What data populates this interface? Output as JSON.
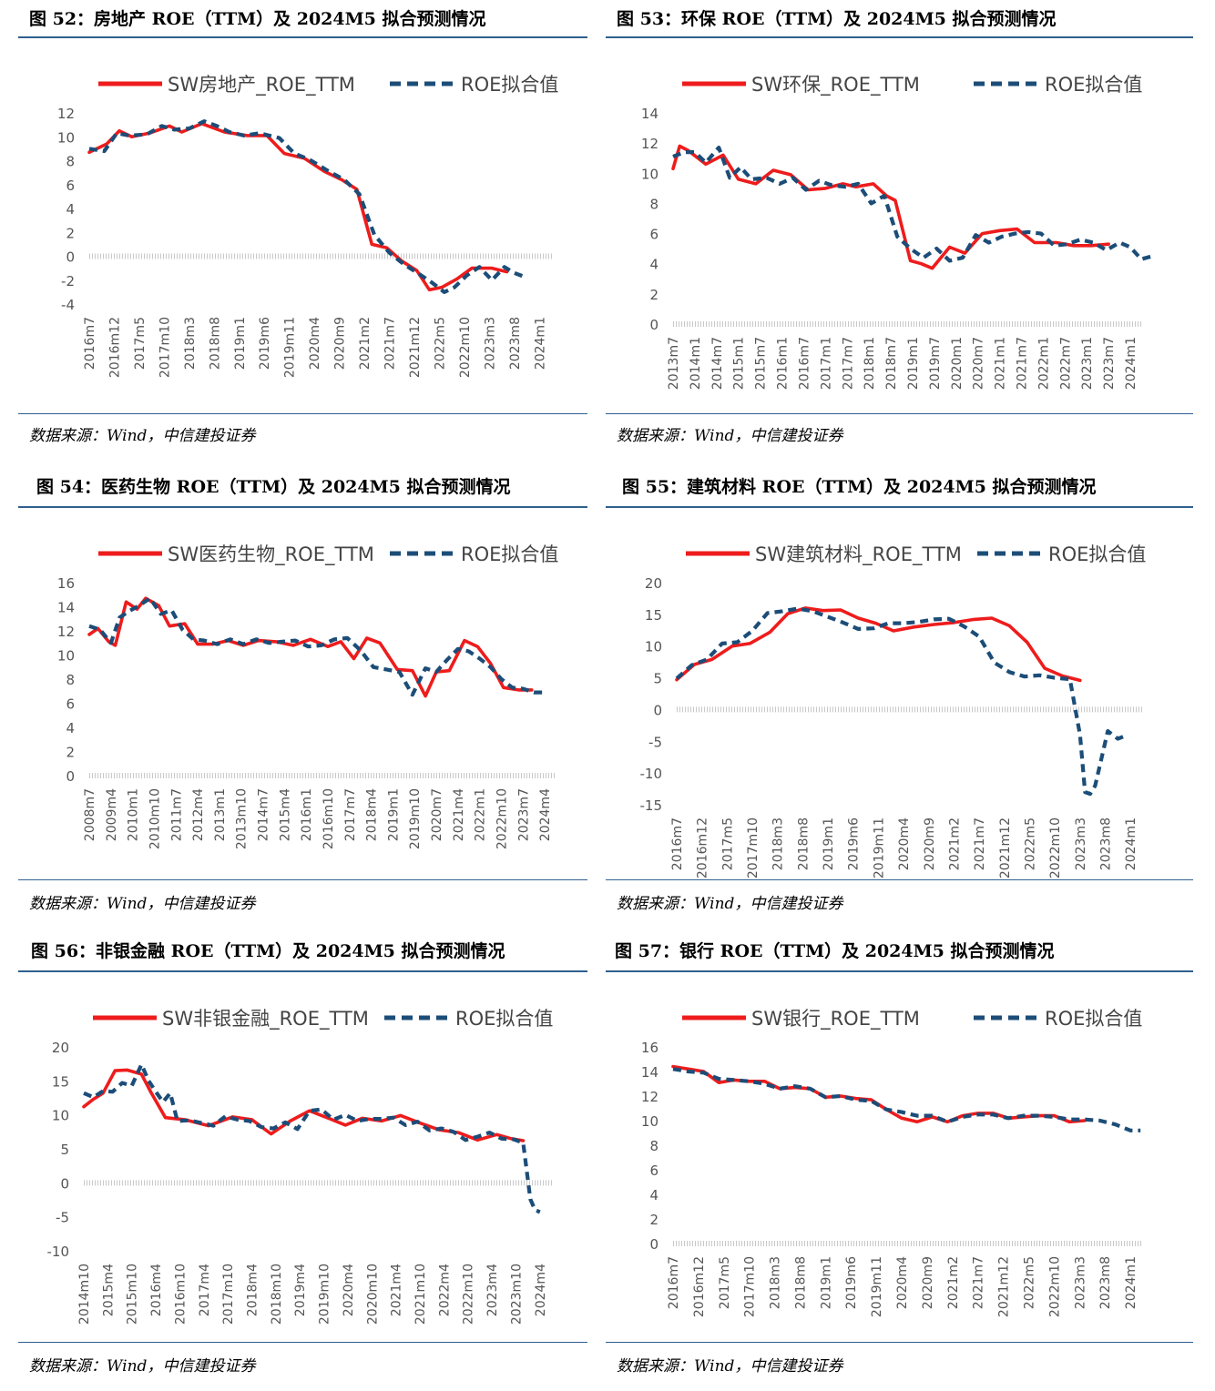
{
  "colors": {
    "actual": "#ee1c1c",
    "fitted": "#1c4d78",
    "rule": "#2f5f8f",
    "axis": "#c8c8c8",
    "tick_text": "#555555"
  },
  "source": "数据来源：Wind，中信建投证券",
  "chart_data": [
    {
      "type": "line",
      "title": "图 52：房地产 ROE（TTM）及 2024M5 拟合预测情况",
      "legend": [
        "SW房地产_ROE_TTM",
        "ROE拟合值"
      ],
      "ylim": [
        -4,
        12
      ],
      "yticks": [
        -4,
        -2,
        0,
        2,
        4,
        6,
        8,
        10,
        12
      ],
      "x_labels": [
        "2016m7",
        "2016m12",
        "2017m5",
        "2017m10",
        "2018m3",
        "2018m8",
        "2019m1",
        "2019m6",
        "2019m11",
        "2020m4",
        "2020m9",
        "2021m2",
        "2021m7",
        "2021m12",
        "2022m5",
        "2022m10",
        "2023m3",
        "2023m8",
        "2024m1"
      ],
      "series": [
        {
          "name": "SW房地产_ROE_TTM",
          "style": "solid",
          "x": [
            0,
            0.7,
            1.2,
            1.7,
            2.4,
            3.2,
            3.7,
            4.5,
            5.4,
            6.3,
            7.1,
            7.8,
            8.6,
            9.4,
            10.1,
            10.7,
            11.3,
            11.9,
            12.5,
            13.1,
            13.6,
            14.1,
            14.7,
            15.3,
            16.1,
            16.7
          ],
          "y": [
            8.7,
            9.4,
            10.5,
            10.0,
            10.3,
            10.9,
            10.4,
            11.1,
            10.4,
            10.1,
            10.1,
            8.6,
            8.2,
            7.1,
            6.4,
            5.6,
            1.0,
            0.7,
            -0.4,
            -1.2,
            -2.8,
            -2.6,
            -1.9,
            -1.0,
            -1.0,
            -1.3
          ]
        },
        {
          "name": "ROE拟合值",
          "style": "dashed",
          "x": [
            0,
            0.6,
            1.1,
            1.6,
            2.3,
            2.9,
            3.4,
            4.0,
            4.6,
            5.1,
            5.6,
            6.2,
            6.8,
            7.2,
            7.6,
            8.2,
            8.8,
            9.5,
            10.2,
            10.8,
            11.4,
            12.0,
            12.6,
            13.2,
            13.7,
            14.2,
            14.6,
            15.1,
            15.6,
            16.1,
            16.6,
            17.0,
            17.5
          ],
          "y": [
            9.0,
            8.8,
            10.3,
            10.1,
            10.2,
            10.9,
            10.6,
            10.7,
            11.3,
            10.9,
            10.4,
            10.1,
            10.3,
            10.1,
            9.9,
            8.6,
            8.1,
            7.2,
            6.4,
            5.2,
            1.8,
            0.3,
            -0.7,
            -1.5,
            -2.2,
            -3.0,
            -2.6,
            -1.6,
            -0.9,
            -2.0,
            -0.9,
            -1.4,
            -1.8
          ]
        }
      ]
    },
    {
      "type": "line",
      "title": "图 53：环保 ROE（TTM）及 2024M5 拟合预测情况",
      "legend": [
        "SW环保_ROE_TTM",
        "ROE拟合值"
      ],
      "ylim": [
        0,
        14
      ],
      "yticks": [
        0,
        2,
        4,
        6,
        8,
        10,
        12,
        14
      ],
      "x_labels": [
        "2013m7",
        "2014m1",
        "2014m7",
        "2015m1",
        "2015m7",
        "2016m1",
        "2016m7",
        "2017m1",
        "2017m7",
        "2018m1",
        "2018m7",
        "2019m1",
        "2019m7",
        "2020m1",
        "2020m7",
        "2021m1",
        "2021m7",
        "2022m1",
        "2022m7",
        "2023m1",
        "2023m7",
        "2024m1"
      ],
      "series": [
        {
          "name": "SW环保_ROE_TTM",
          "style": "solid",
          "x": [
            0,
            0.3,
            0.7,
            1.5,
            2.3,
            3.0,
            3.8,
            4.6,
            5.4,
            6.2,
            7.0,
            7.8,
            8.4,
            9.2,
            9.8,
            10.2,
            10.9,
            11.4,
            11.9,
            12.7,
            13.4,
            14.2,
            15.0,
            15.8,
            16.6,
            17.6,
            18.4,
            19.2,
            20.0
          ],
          "y": [
            10.3,
            11.8,
            11.5,
            10.6,
            11.2,
            9.6,
            9.3,
            10.2,
            9.9,
            8.9,
            9.0,
            9.3,
            9.1,
            9.3,
            8.5,
            8.2,
            4.2,
            4.0,
            3.7,
            5.1,
            4.7,
            6.0,
            6.2,
            6.3,
            5.4,
            5.4,
            5.2,
            5.2,
            5.3
          ]
        },
        {
          "name": "ROE拟合值",
          "style": "dashed",
          "x": [
            0,
            0.5,
            1.0,
            1.5,
            2.1,
            2.6,
            3.1,
            3.6,
            4.3,
            4.9,
            5.5,
            6.1,
            6.7,
            7.3,
            7.9,
            8.5,
            9.1,
            9.7,
            10.3,
            10.9,
            11.5,
            12.1,
            12.7,
            13.3,
            13.9,
            14.5,
            15.1,
            15.7,
            16.3,
            16.9,
            17.5,
            18.1,
            18.7,
            19.3,
            19.9,
            20.5,
            21.0,
            21.5,
            22.0
          ],
          "y": [
            11.1,
            11.4,
            11.4,
            10.7,
            11.7,
            9.7,
            10.4,
            9.6,
            9.7,
            9.3,
            9.7,
            8.9,
            9.5,
            9.2,
            9.1,
            9.3,
            8.0,
            8.5,
            5.8,
            5.0,
            4.4,
            5.0,
            4.2,
            4.4,
            5.9,
            5.4,
            5.8,
            6.0,
            6.1,
            6.0,
            5.2,
            5.3,
            5.6,
            5.4,
            4.9,
            5.4,
            5.1,
            4.3,
            4.5
          ]
        }
      ]
    },
    {
      "type": "line",
      "title": "图 54：医药生物 ROE（TTM）及 2024M5 拟合预测情况",
      "legend": [
        "SW医药生物_ROE_TTM",
        "ROE拟合值"
      ],
      "ylim": [
        0,
        16
      ],
      "yticks": [
        0,
        2,
        4,
        6,
        8,
        10,
        12,
        14,
        16
      ],
      "x_labels": [
        "2008m7",
        "2009m4",
        "2010m1",
        "2010m10",
        "2011m7",
        "2012m4",
        "2013m1",
        "2013m10",
        "2014m7",
        "2015m4",
        "2016m1",
        "2016m10",
        "2017m7",
        "2018m4",
        "2019m1",
        "2019m10",
        "2020m7",
        "2021m4",
        "2022m1",
        "2022m10",
        "2023m7",
        "2024m4"
      ],
      "series": [
        {
          "name": "SW医药生物_ROE_TTM",
          "style": "solid",
          "x": [
            0,
            0.4,
            0.9,
            1.2,
            1.7,
            2.2,
            2.6,
            3.2,
            3.7,
            4.4,
            5.0,
            5.7,
            6.4,
            7.1,
            7.8,
            8.6,
            9.4,
            10.2,
            11.0,
            11.6,
            12.2,
            12.8,
            13.4,
            14.2,
            14.9,
            15.5,
            16.0,
            16.6,
            17.3,
            17.9,
            18.5,
            19.1,
            19.8,
            20.4
          ],
          "y": [
            11.7,
            12.2,
            11.1,
            10.8,
            14.4,
            13.8,
            14.7,
            14.1,
            12.4,
            12.6,
            10.9,
            10.9,
            11.2,
            10.8,
            11.2,
            11.1,
            10.8,
            11.3,
            10.7,
            11.1,
            9.7,
            11.4,
            11.0,
            8.8,
            8.7,
            6.6,
            8.6,
            8.7,
            11.2,
            10.7,
            9.3,
            7.3,
            7.1,
            7.1
          ]
        },
        {
          "name": "ROE拟合值",
          "style": "dashed",
          "x": [
            0,
            0.5,
            1.0,
            1.4,
            1.8,
            2.3,
            2.8,
            3.3,
            3.8,
            4.3,
            4.8,
            5.3,
            5.9,
            6.5,
            7.1,
            7.7,
            8.3,
            8.9,
            9.5,
            10.1,
            10.7,
            11.3,
            11.9,
            12.5,
            13.1,
            13.7,
            14.3,
            14.9,
            15.5,
            16.0,
            16.5,
            17.0,
            17.5,
            18.0,
            18.5,
            19.0,
            19.5,
            20.0,
            20.5,
            21.0
          ],
          "y": [
            12.4,
            12.1,
            11.0,
            13.1,
            13.6,
            14.1,
            14.7,
            13.4,
            13.7,
            12.1,
            11.3,
            11.2,
            10.9,
            11.3,
            10.9,
            11.3,
            11.0,
            11.1,
            11.2,
            10.7,
            10.8,
            11.3,
            11.4,
            10.4,
            9.0,
            8.8,
            8.6,
            6.7,
            8.9,
            8.6,
            9.6,
            10.5,
            10.3,
            9.7,
            9.0,
            8.0,
            7.3,
            7.2,
            6.9,
            6.9
          ]
        }
      ]
    },
    {
      "type": "line",
      "title": "图 55：建筑材料 ROE（TTM）及 2024M5 拟合预测情况",
      "legend": [
        "SW建筑材料_ROE_TTM",
        "ROE拟合值"
      ],
      "ylim": [
        -15,
        20
      ],
      "yticks": [
        -15,
        -10,
        -5,
        0,
        5,
        10,
        15,
        20
      ],
      "x_labels": [
        "2016m7",
        "2016m12",
        "2017m5",
        "2017m10",
        "2018m3",
        "2018m8",
        "2019m1",
        "2019m6",
        "2019m11",
        "2020m4",
        "2020m9",
        "2021m2",
        "2021m7",
        "2021m12",
        "2022m5",
        "2022m10",
        "2023m3",
        "2023m8",
        "2024m1"
      ],
      "series": [
        {
          "name": "SW建筑材料_ROE_TTM",
          "style": "solid",
          "x": [
            0,
            0.7,
            1.4,
            2.2,
            2.9,
            3.7,
            4.4,
            5.1,
            5.8,
            6.5,
            7.2,
            7.9,
            8.6,
            9.4,
            10.2,
            11.0,
            11.8,
            12.5,
            13.2,
            13.9,
            14.6,
            15.3,
            16.0
          ],
          "y": [
            4.7,
            7.1,
            7.9,
            10.0,
            10.4,
            12.2,
            15.1,
            16.0,
            15.6,
            15.7,
            14.4,
            13.6,
            12.4,
            13.0,
            13.4,
            13.7,
            14.2,
            14.4,
            13.2,
            10.6,
            6.5,
            5.3,
            4.6
          ]
        },
        {
          "name": "ROE拟合值",
          "style": "dashed",
          "x": [
            0,
            0.6,
            1.2,
            1.8,
            2.4,
            3.0,
            3.6,
            4.2,
            4.8,
            5.4,
            6.0,
            6.6,
            7.2,
            7.8,
            8.4,
            9.0,
            9.6,
            10.2,
            10.8,
            11.4,
            12.0,
            12.6,
            13.2,
            13.8,
            14.4,
            15.0,
            15.6,
            16.0,
            16.2,
            16.4,
            16.6,
            17.1,
            17.5,
            17.9
          ],
          "y": [
            4.9,
            7.0,
            7.9,
            10.4,
            10.6,
            12.4,
            15.2,
            15.5,
            15.9,
            15.5,
            14.6,
            13.7,
            12.7,
            12.8,
            13.6,
            13.6,
            13.8,
            14.2,
            14.3,
            13.1,
            11.5,
            7.4,
            5.9,
            5.2,
            5.4,
            5.0,
            4.8,
            -4.0,
            -13.0,
            -13.3,
            -12.0,
            -3.4,
            -4.6,
            -4.0
          ]
        }
      ]
    },
    {
      "type": "line",
      "title": "图 56：非银金融 ROE（TTM）及 2024M5 拟合预测情况",
      "legend": [
        "SW非银金融_ROE_TTM",
        "ROE拟合值"
      ],
      "ylim": [
        -10,
        20
      ],
      "yticks": [
        -10,
        -5,
        0,
        5,
        10,
        15,
        20
      ],
      "x_labels": [
        "2014m10",
        "2015m4",
        "2015m10",
        "2016m4",
        "2016m10",
        "2017m4",
        "2017m10",
        "2018m4",
        "2018m10",
        "2019m4",
        "2019m10",
        "2020m4",
        "2020m10",
        "2021m4",
        "2021m10",
        "2022m4",
        "2022m10",
        "2023m4",
        "2023m10",
        "2024m4"
      ],
      "series": [
        {
          "name": "SW非银金融_ROE_TTM",
          "style": "solid",
          "x": [
            0,
            0.4,
            0.8,
            1.3,
            1.8,
            2.4,
            2.8,
            3.4,
            4.2,
            5.2,
            6.2,
            7.0,
            7.8,
            8.6,
            9.4,
            10.2,
            10.9,
            11.6,
            12.4,
            13.2,
            14.0,
            14.8,
            15.6,
            16.4,
            17.2,
            17.8,
            18.3
          ],
          "y": [
            11.2,
            12.3,
            13.2,
            16.5,
            16.6,
            16.0,
            13.3,
            9.6,
            9.3,
            8.4,
            9.7,
            9.3,
            7.2,
            9.1,
            10.6,
            9.5,
            8.5,
            9.5,
            9.1,
            9.9,
            8.8,
            7.8,
            7.4,
            6.3,
            7.1,
            6.5,
            6.2
          ]
        },
        {
          "name": "ROE拟合值",
          "style": "dashed",
          "x": [
            0,
            0.4,
            0.8,
            1.2,
            1.6,
            2.0,
            2.4,
            2.7,
            3.0,
            3.3,
            3.6,
            3.9,
            4.4,
            4.9,
            5.4,
            5.9,
            6.4,
            6.9,
            7.4,
            7.9,
            8.4,
            8.9,
            9.4,
            9.9,
            10.4,
            10.9,
            11.4,
            11.9,
            12.4,
            12.9,
            13.4,
            13.9,
            14.4,
            14.9,
            15.4,
            15.9,
            16.4,
            16.9,
            17.4,
            17.9,
            18.3,
            18.6,
            18.8,
            19.0
          ],
          "y": [
            13.2,
            12.6,
            13.5,
            13.4,
            14.7,
            14.3,
            17.4,
            15.0,
            13.4,
            11.9,
            13.2,
            9.1,
            9.2,
            8.8,
            8.4,
            9.8,
            9.3,
            9.1,
            8.2,
            8.0,
            8.9,
            7.9,
            10.6,
            10.8,
            9.3,
            10.0,
            9.1,
            9.4,
            9.4,
            9.6,
            8.5,
            9.0,
            7.7,
            8.0,
            7.5,
            6.3,
            6.8,
            7.4,
            6.5,
            6.4,
            5.9,
            -2.4,
            -4.0,
            -4.3
          ]
        }
      ]
    },
    {
      "type": "line",
      "title": "图 57：银行 ROE（TTM）及 2024M5 拟合预测情况",
      "legend": [
        "SW银行_ROE_TTM",
        "ROE拟合值"
      ],
      "ylim": [
        0,
        16
      ],
      "yticks": [
        0,
        2,
        4,
        6,
        8,
        10,
        12,
        14,
        16
      ],
      "x_labels": [
        "2016m7",
        "2016m12",
        "2017m5",
        "2017m10",
        "2018m3",
        "2018m8",
        "2019m1",
        "2019m6",
        "2019m11",
        "2020m4",
        "2020m9",
        "2021m2",
        "2021m7",
        "2021m12",
        "2022m5",
        "2022m10",
        "2023m3",
        "2023m8",
        "2024m1"
      ],
      "series": [
        {
          "name": "SW银行_ROE_TTM",
          "style": "solid",
          "x": [
            0,
            0.6,
            1.2,
            1.8,
            2.4,
            3.0,
            3.6,
            4.2,
            4.8,
            5.4,
            6.0,
            6.6,
            7.2,
            7.8,
            8.4,
            9.0,
            9.6,
            10.2,
            10.8,
            11.4,
            12.0,
            12.6,
            13.2,
            13.8,
            14.4,
            15.0,
            15.6,
            16.2
          ],
          "y": [
            14.4,
            14.2,
            14.0,
            13.1,
            13.3,
            13.2,
            13.2,
            12.6,
            12.7,
            12.6,
            11.9,
            12.0,
            11.8,
            11.7,
            10.9,
            10.2,
            9.9,
            10.3,
            9.9,
            10.4,
            10.6,
            10.6,
            10.2,
            10.3,
            10.4,
            10.4,
            9.9,
            10.0
          ]
        },
        {
          "name": "ROE拟合值",
          "style": "dashed",
          "x": [
            0,
            0.6,
            1.2,
            1.8,
            2.4,
            3.0,
            3.6,
            4.2,
            4.8,
            5.4,
            6.0,
            6.6,
            7.2,
            7.8,
            8.4,
            9.0,
            9.6,
            10.2,
            10.8,
            11.4,
            12.0,
            12.6,
            13.2,
            13.8,
            14.4,
            15.0,
            15.6,
            16.2,
            16.8,
            17.4,
            18.0,
            18.4
          ],
          "y": [
            14.2,
            14.0,
            13.9,
            13.4,
            13.3,
            13.2,
            13.0,
            12.6,
            12.8,
            12.6,
            11.9,
            12.0,
            11.7,
            11.6,
            10.9,
            10.7,
            10.4,
            10.4,
            9.9,
            10.3,
            10.5,
            10.5,
            10.2,
            10.4,
            10.4,
            10.3,
            10.1,
            10.1,
            10.0,
            9.7,
            9.2,
            9.2
          ]
        }
      ]
    }
  ]
}
